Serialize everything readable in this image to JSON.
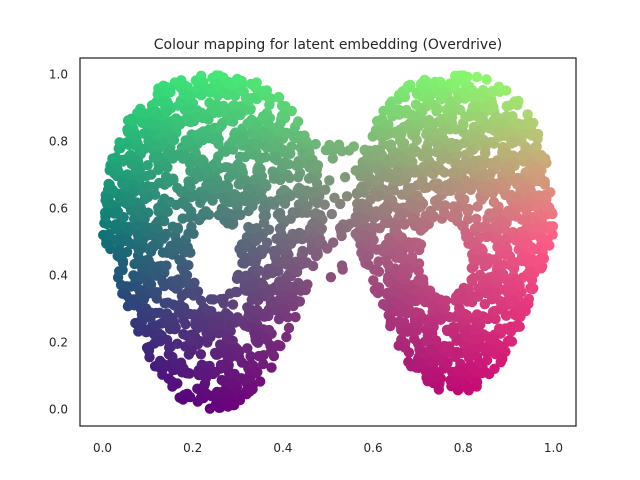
{
  "chart_data": {
    "type": "scatter",
    "title": "Colour mapping for latent embedding (Overdrive)",
    "xlabel": "",
    "ylabel": "",
    "xlim": [
      -0.05,
      1.05
    ],
    "ylim": [
      -0.05,
      1.05
    ],
    "x_ticks": [
      "0.0",
      "0.2",
      "0.4",
      "0.6",
      "0.8",
      "1.0"
    ],
    "y_ticks": [
      "0.0",
      "0.2",
      "0.4",
      "0.6",
      "0.8",
      "1.0"
    ],
    "grid": false,
    "legend": "none",
    "colour_mapping": {
      "description": "2D colour map over embedding coordinates",
      "corner_colors": {
        "bottom_left": "#3d0080",
        "top_left": "#27e07a",
        "top_right": "#9cff6a",
        "bottom_right": "#e0006f",
        "right_middle": "#ff5a86",
        "left_middle": "#0f6f76"
      }
    },
    "clusters": [
      {
        "name": "",
        "x_range": [
          0.0,
          0.49
        ],
        "y_range": [
          0.0,
          1.0
        ],
        "hole_center": [
          0.25,
          0.45
        ]
      },
      {
        "name": "",
        "x_range": [
          0.56,
          1.0
        ],
        "y_range": [
          0.05,
          1.0
        ],
        "hole_center": [
          0.76,
          0.45
        ]
      }
    ]
  }
}
